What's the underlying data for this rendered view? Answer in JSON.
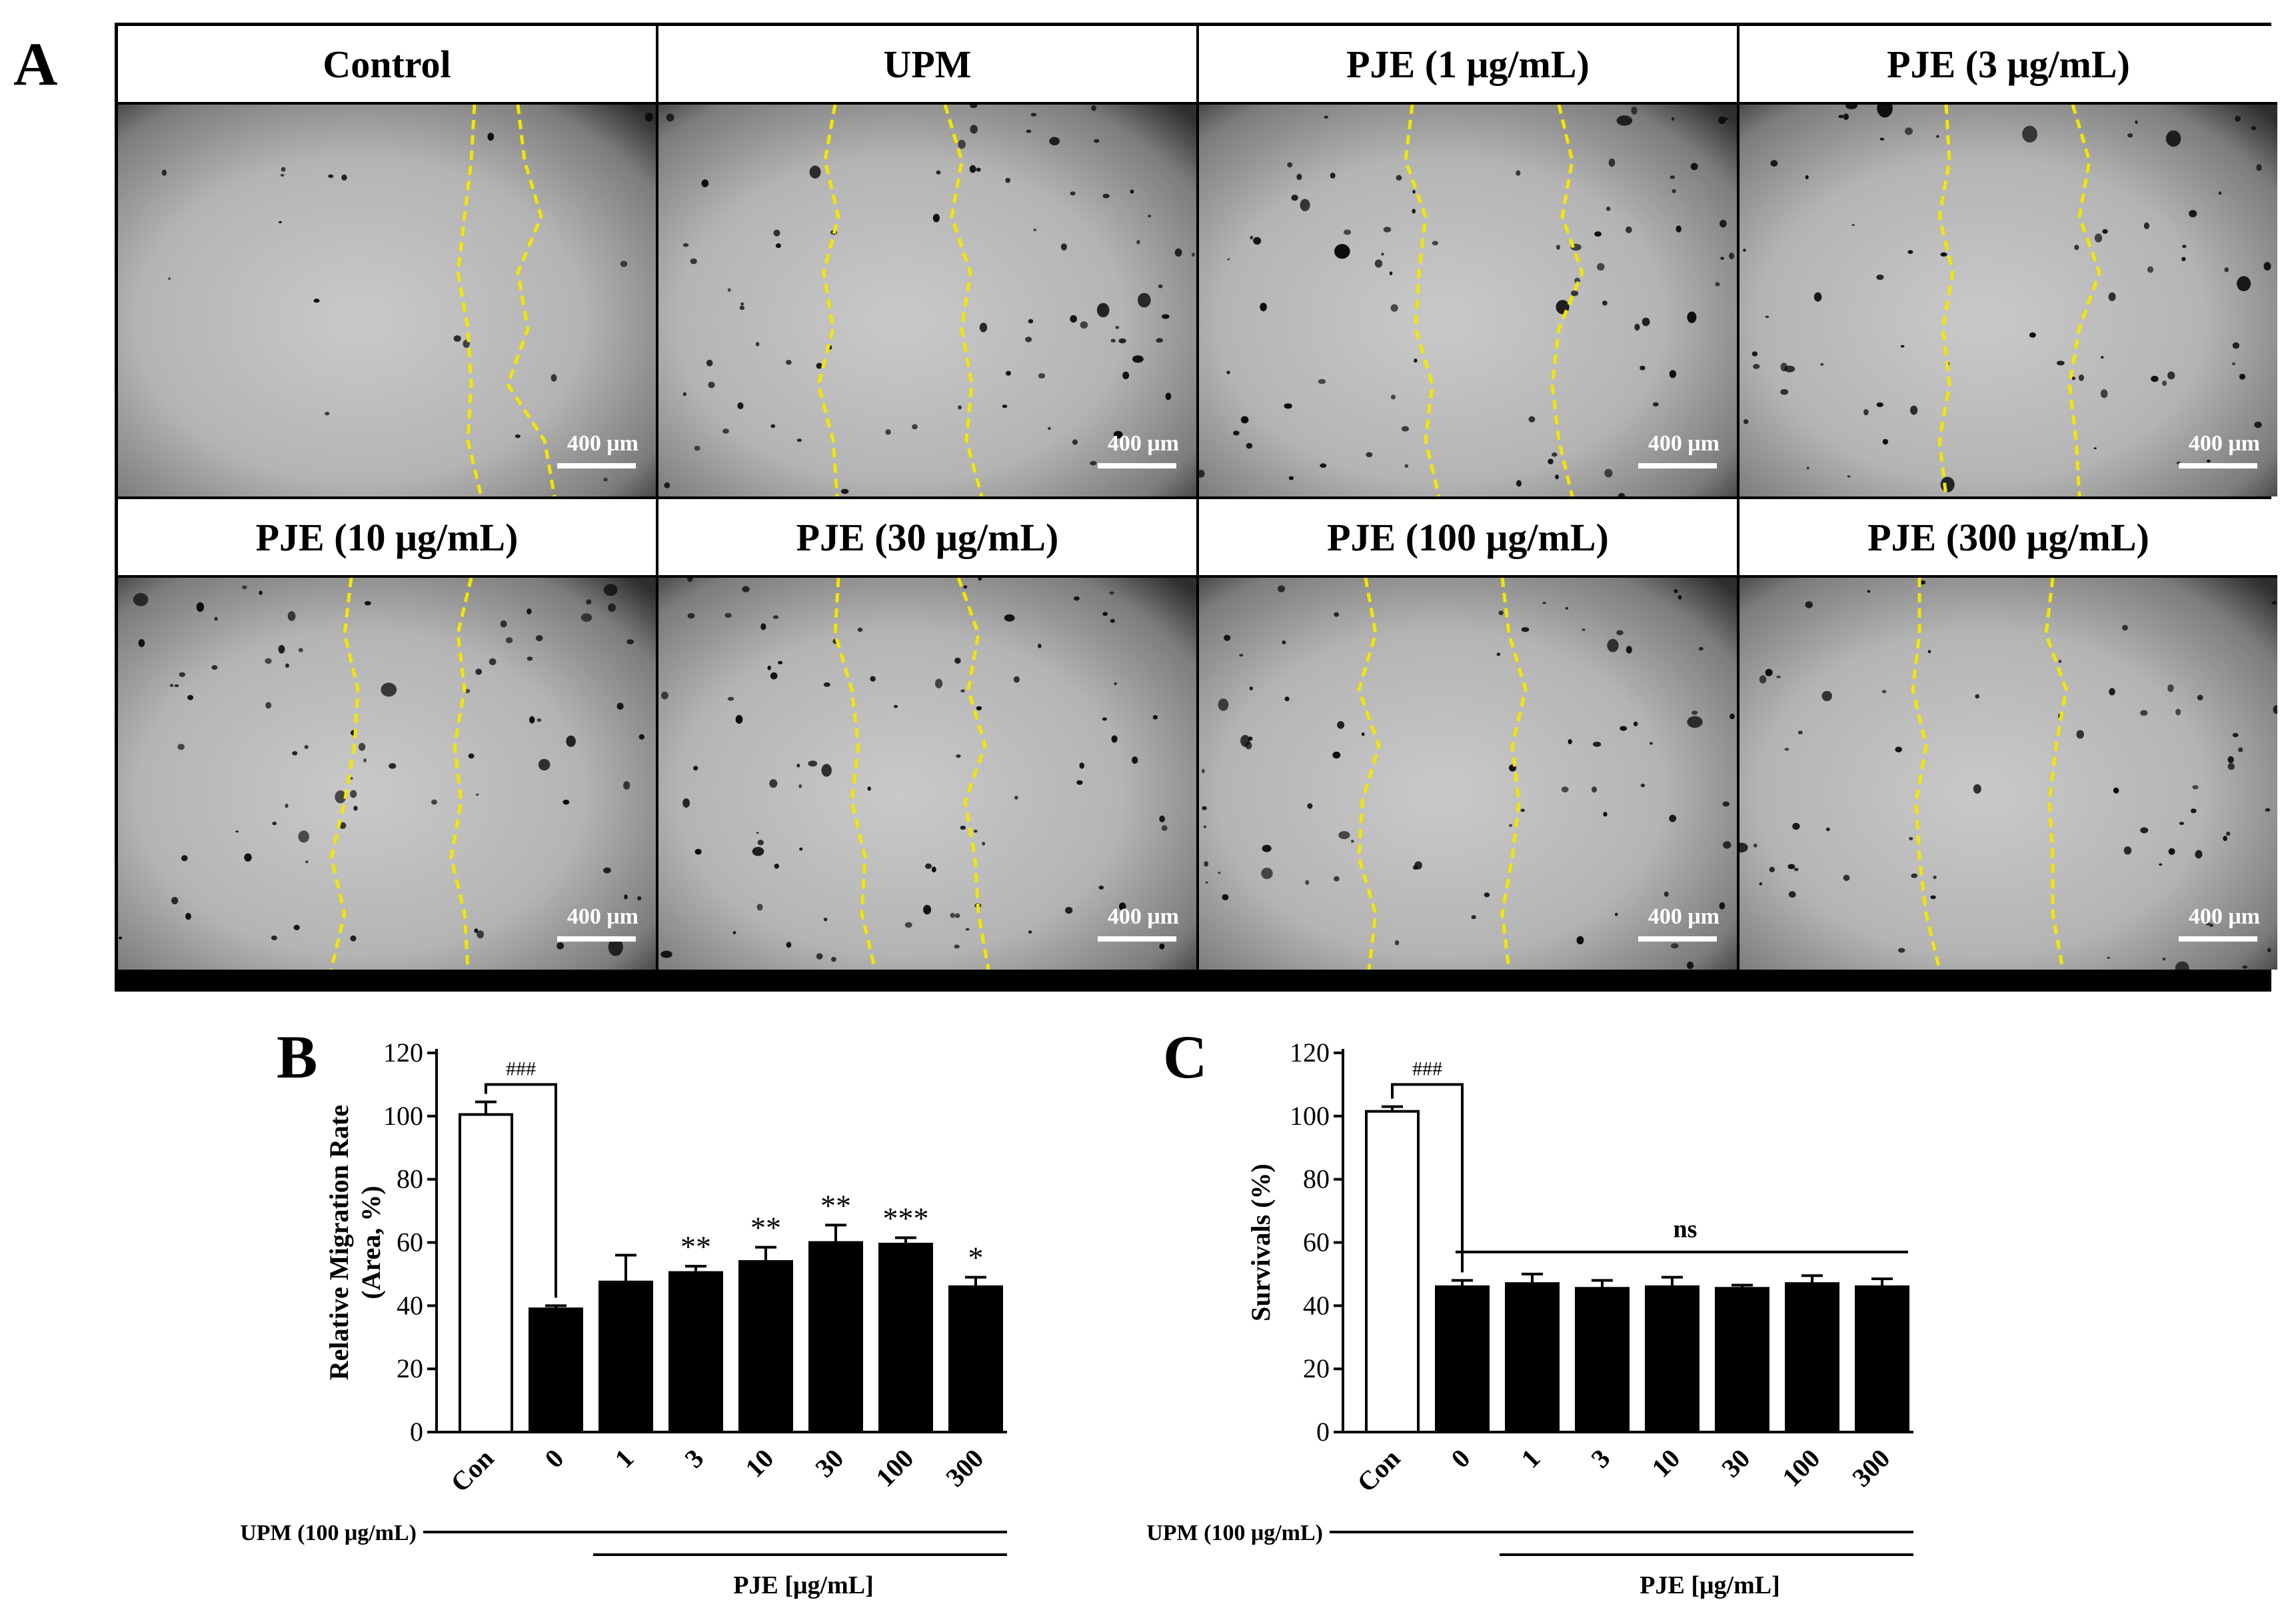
{
  "panels": {
    "a_label": "A",
    "b_label": "B",
    "c_label": "C"
  },
  "micrographs": [
    {
      "title": "Control",
      "scale_label": "400 μm",
      "left_line": [
        535,
        530,
        520,
        510,
        525,
        530,
        525,
        545
      ],
      "right_line": [
        600,
        610,
        635,
        600,
        615,
        585,
        640,
        655
      ]
    },
    {
      "title": "UPM",
      "scale_label": "400 μm",
      "left_line": [
        265,
        250,
        270,
        248,
        262,
        240,
        262,
        268
      ],
      "right_line": [
        430,
        455,
        440,
        468,
        455,
        470,
        462,
        485
      ]
    },
    {
      "title": "PJE (1 μg/mL)",
      "scale_label": "400 μm",
      "left_line": [
        320,
        310,
        340,
        330,
        325,
        350,
        340,
        360
      ],
      "right_line": [
        540,
        560,
        545,
        575,
        540,
        530,
        540,
        560
      ]
    },
    {
      "title": "PJE (3 μg/mL)",
      "scale_label": "400 μm",
      "left_line": [
        310,
        315,
        300,
        320,
        305,
        315,
        300,
        310
      ],
      "right_line": [
        500,
        525,
        510,
        540,
        510,
        495,
        505,
        510
      ]
    },
    {
      "title": "PJE (10 μg/mL)",
      "scale_label": "400 μm",
      "left_line": [
        350,
        340,
        360,
        355,
        340,
        320,
        340,
        320
      ],
      "right_line": [
        530,
        510,
        520,
        505,
        515,
        500,
        520,
        525
      ]
    },
    {
      "title": "PJE (30 μg/mL)",
      "scale_label": "400 μm",
      "left_line": [
        270,
        265,
        290,
        300,
        290,
        310,
        305,
        325
      ],
      "right_line": [
        450,
        480,
        465,
        490,
        460,
        475,
        480,
        495
      ]
    },
    {
      "title": "PJE (100 μg/mL)",
      "scale_label": "400 μm",
      "left_line": [
        250,
        265,
        240,
        270,
        245,
        240,
        265,
        255
      ],
      "right_line": [
        455,
        465,
        490,
        470,
        480,
        470,
        455,
        465
      ]
    },
    {
      "title": "PJE (300 μg/mL)",
      "scale_label": "400 μm",
      "left_line": [
        270,
        270,
        260,
        280,
        265,
        270,
        280,
        300
      ],
      "right_line": [
        470,
        460,
        490,
        475,
        465,
        470,
        470,
        485
      ]
    }
  ],
  "chart_data": [
    {
      "type": "bar",
      "panel": "B",
      "ylabel_line1": "Relative Migration Rate",
      "ylabel_line2": "(Area, %)",
      "ylim": [
        0,
        120
      ],
      "yticks": [
        "0",
        "20",
        "40",
        "60",
        "80",
        "100",
        "120"
      ],
      "categories": [
        "Con",
        "0",
        "1",
        "3",
        "10",
        "30",
        "100",
        "300"
      ],
      "values": [
        100.5,
        39,
        47.5,
        50.5,
        54,
        60,
        59.5,
        46
      ],
      "errors": [
        4,
        1,
        8.5,
        2,
        4.5,
        5.5,
        2,
        3
      ],
      "annotations": [
        "",
        "",
        "",
        "**",
        "**",
        "**",
        "***",
        "*"
      ],
      "bracket_label": "###",
      "upm_label": "UPM (100 μg/mL)",
      "pje_label": "PJE [μg/mL]"
    },
    {
      "type": "bar",
      "panel": "C",
      "ylabel": "Survivals (%)",
      "ylim": [
        0,
        120
      ],
      "yticks": [
        "0",
        "20",
        "40",
        "60",
        "80",
        "100",
        "120"
      ],
      "categories": [
        "Con",
        "0",
        "1",
        "3",
        "10",
        "30",
        "100",
        "300"
      ],
      "values": [
        101.5,
        46,
        47,
        45.5,
        46,
        45.5,
        47,
        46
      ],
      "errors": [
        1.5,
        2,
        3,
        2.5,
        3,
        1,
        2.5,
        2.5
      ],
      "bracket_label": "###",
      "ns_label": "ns",
      "upm_label": "UPM (100 μg/mL)",
      "pje_label": "PJE [μg/mL]"
    }
  ],
  "colors": {
    "wound_line": "#f2e600",
    "bar_fill": "#000000",
    "control_fill": "#ffffff"
  }
}
